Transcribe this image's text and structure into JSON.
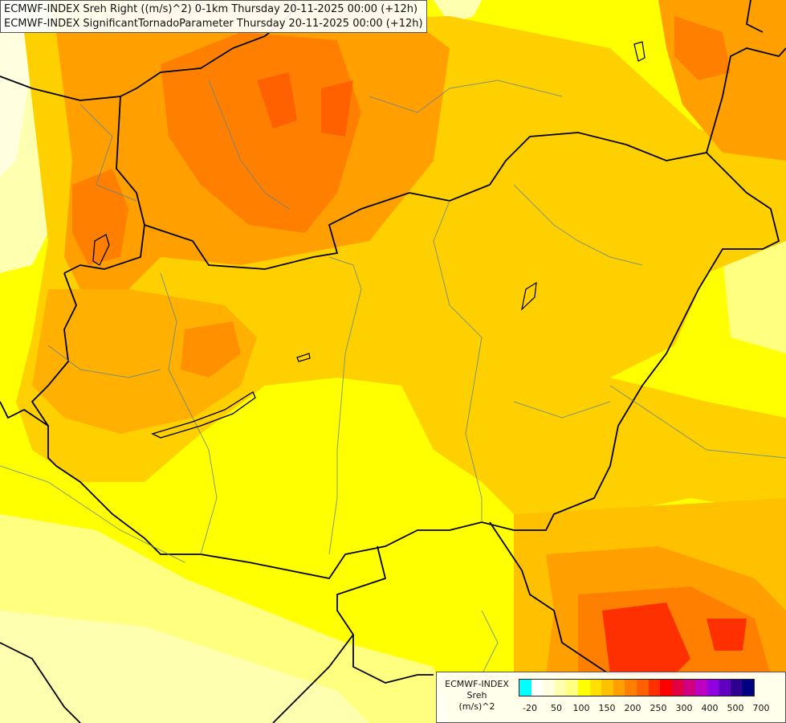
{
  "titles": [
    "ECMWF-INDEX Sreh Right ((m/s)^2) 0-1km Thursday 20-11-2025 00:00 (+12h)",
    "ECMWF-INDEX SignificantTornadoParameter Thursday 20-11-2025 00:00 (+12h)"
  ],
  "legend": {
    "model": "ECMWF-INDEX",
    "parameter": "Sreh",
    "unit": "(m/s)^2",
    "colors": [
      "#00ffff",
      "#ffffff",
      "#ffffe0",
      "#ffffb0",
      "#ffff80",
      "#ffff00",
      "#ffe000",
      "#ffc000",
      "#ffa000",
      "#ff8000",
      "#ff6000",
      "#ff3000",
      "#ff0000",
      "#e00040",
      "#d00080",
      "#c000c0",
      "#9000e0",
      "#6000c0",
      "#300090",
      "#000080"
    ],
    "ticks": [
      "-20",
      "50",
      "100",
      "150",
      "200",
      "250",
      "300",
      "400",
      "500",
      "700"
    ]
  }
}
